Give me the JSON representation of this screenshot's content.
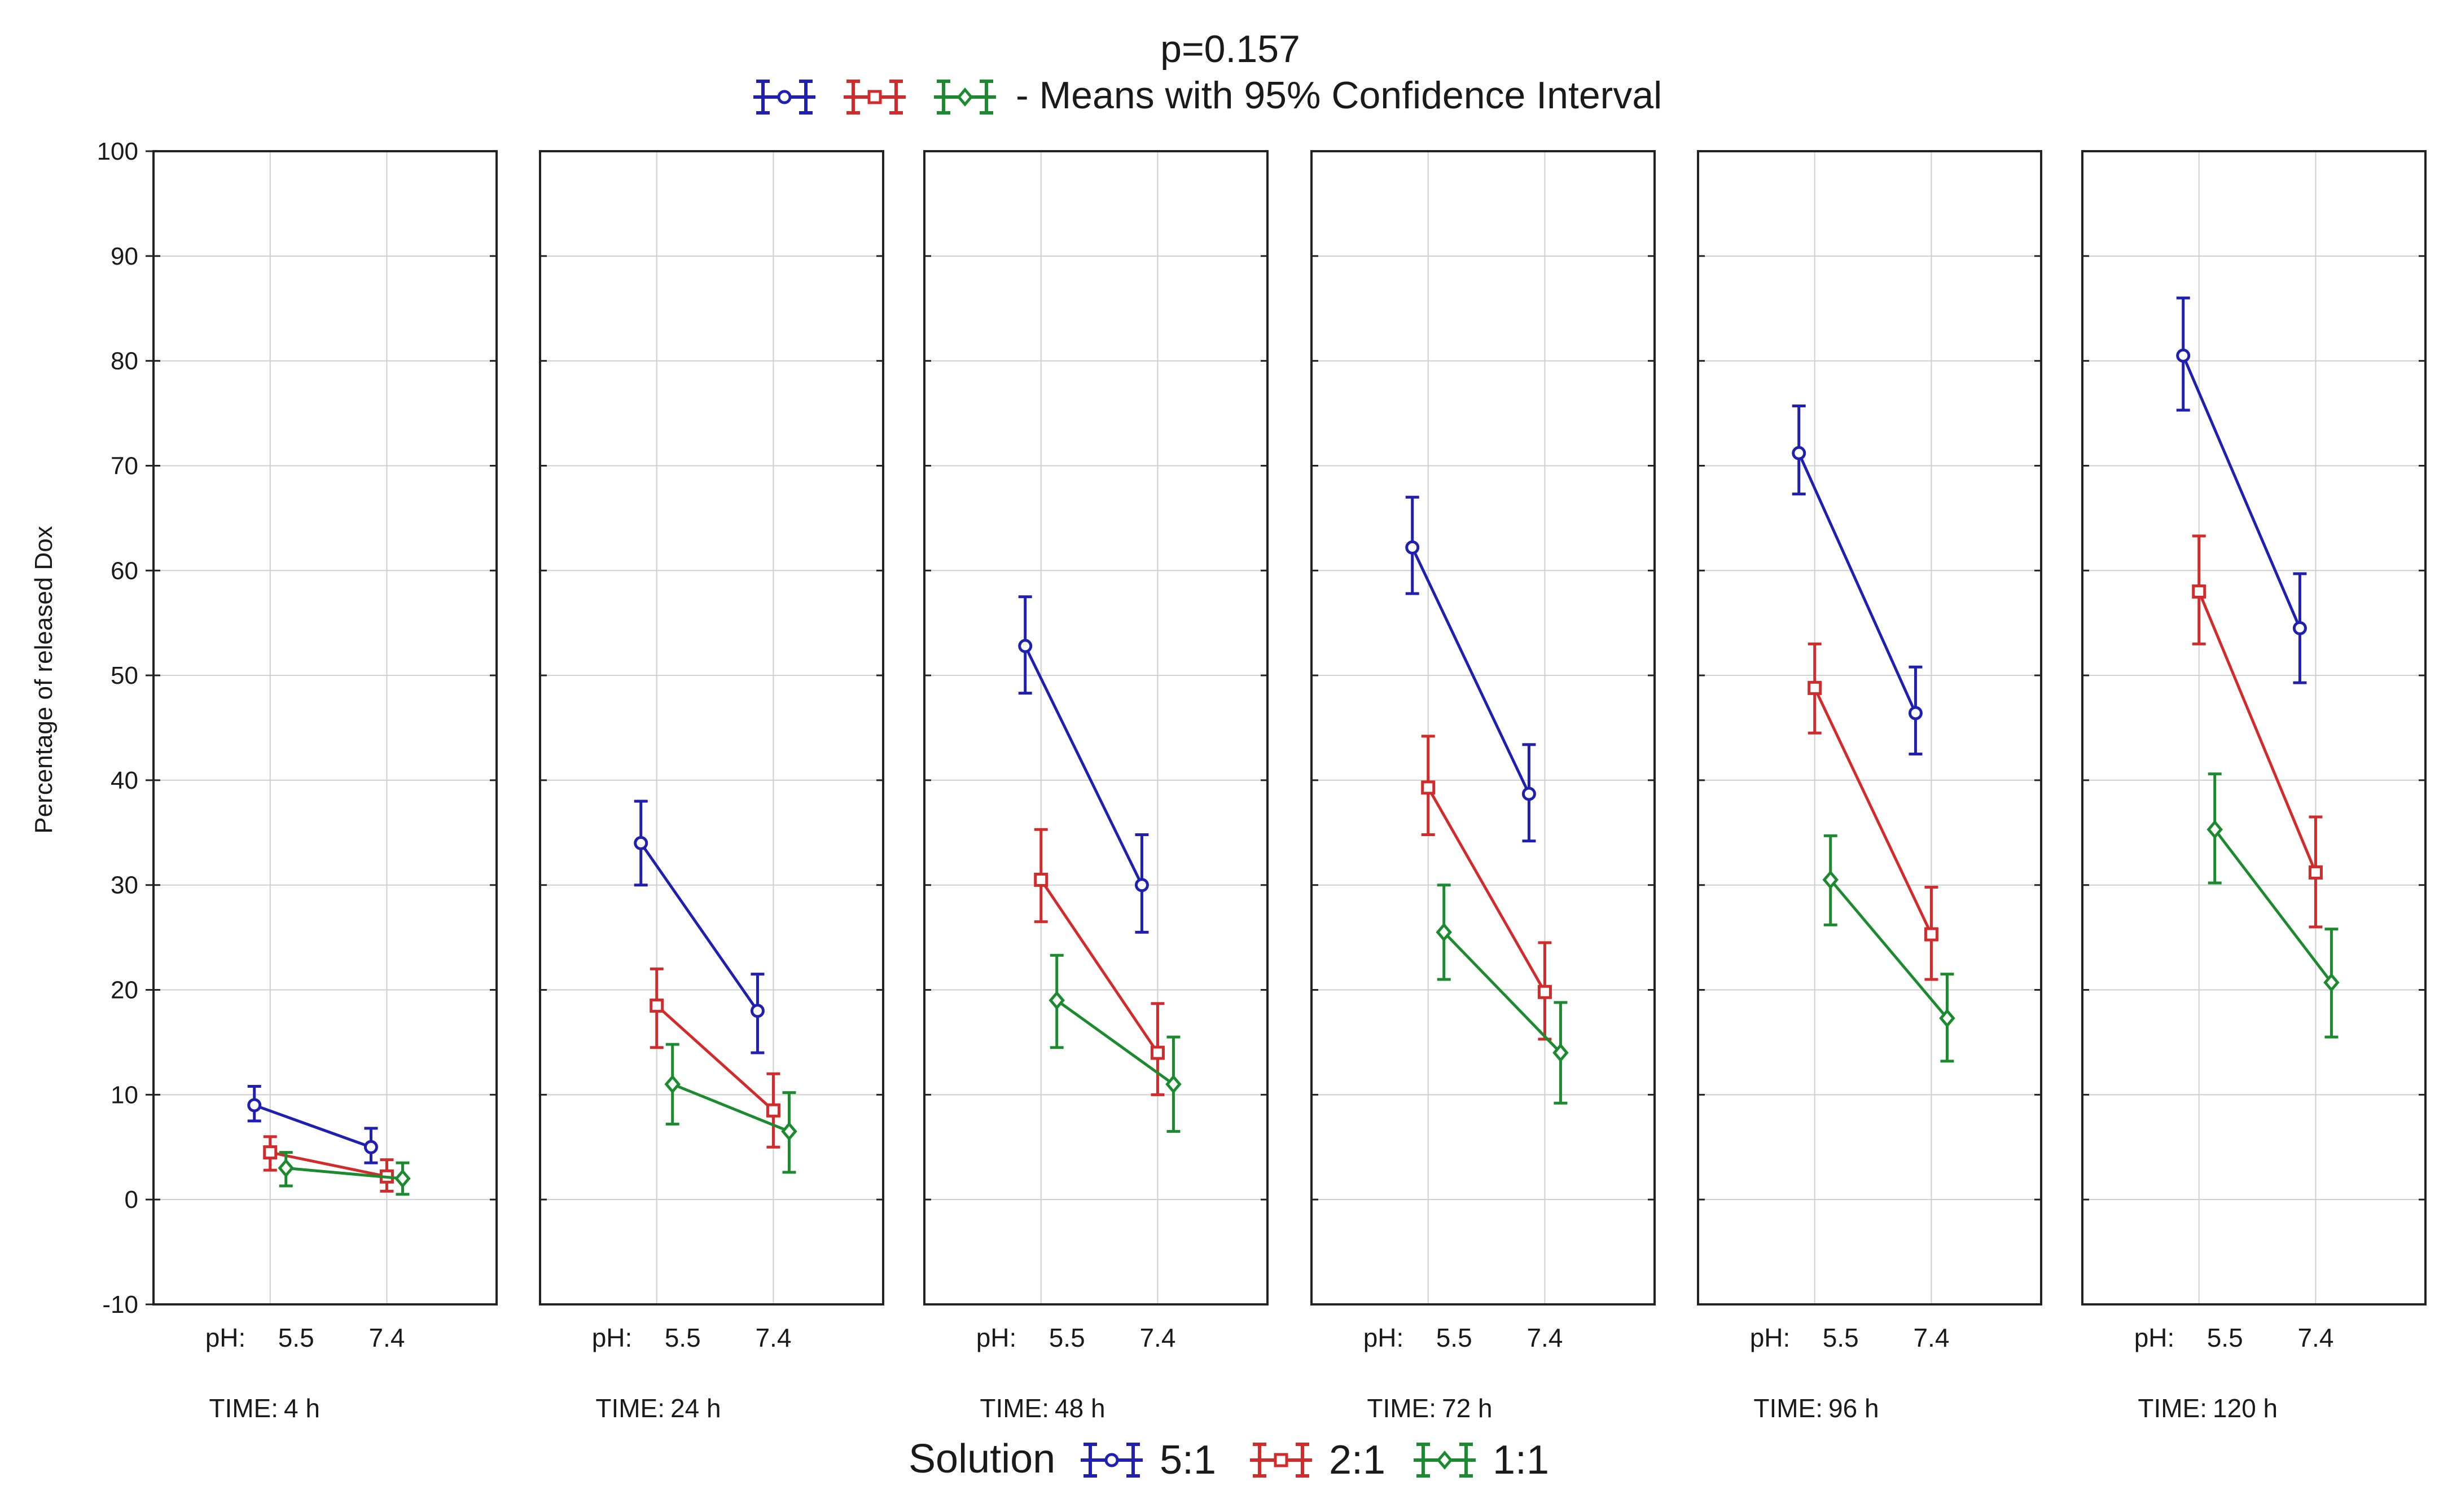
{
  "chart_data": {
    "type": "line",
    "title": "p=0.157",
    "subtitle": "- Means with 95% Confidence Interval",
    "ylabel": "Percentage of released Dox",
    "ylim": [
      -10,
      100
    ],
    "yticks": [
      -10,
      0,
      10,
      20,
      30,
      40,
      50,
      60,
      70,
      80,
      90,
      100
    ],
    "grid": true,
    "x_factor_label": "pH:",
    "x_categories": [
      "5.5",
      "7.4"
    ],
    "panel_factor_label": "TIME:",
    "legend_title": "Solution",
    "legend_position": "bottom",
    "panels": [
      {
        "time": "4 h",
        "series": [
          {
            "name": "5:1",
            "means": [
              9,
              5
            ],
            "ci_low": [
              7.5,
              3.5
            ],
            "ci_high": [
              10.8,
              6.8
            ]
          },
          {
            "name": "2:1",
            "means": [
              4.5,
              2.2
            ],
            "ci_low": [
              2.8,
              0.8
            ],
            "ci_high": [
              6,
              3.8
            ]
          },
          {
            "name": "1:1",
            "means": [
              3,
              2
            ],
            "ci_low": [
              1.3,
              0.5
            ],
            "ci_high": [
              4.5,
              3.5
            ]
          }
        ]
      },
      {
        "time": "24 h",
        "series": [
          {
            "name": "5:1",
            "means": [
              34,
              18
            ],
            "ci_low": [
              30,
              14
            ],
            "ci_high": [
              38,
              21.5
            ]
          },
          {
            "name": "2:1",
            "means": [
              18.5,
              8.5
            ],
            "ci_low": [
              14.5,
              5
            ],
            "ci_high": [
              22,
              12
            ]
          },
          {
            "name": "1:1",
            "means": [
              11,
              6.5
            ],
            "ci_low": [
              7.2,
              2.6
            ],
            "ci_high": [
              14.8,
              10.2
            ]
          }
        ]
      },
      {
        "time": "48 h",
        "series": [
          {
            "name": "5:1",
            "means": [
              52.8,
              30
            ],
            "ci_low": [
              48.3,
              25.5
            ],
            "ci_high": [
              57.5,
              34.8
            ]
          },
          {
            "name": "2:1",
            "means": [
              30.5,
              14
            ],
            "ci_low": [
              26.5,
              10
            ],
            "ci_high": [
              35.3,
              18.7
            ]
          },
          {
            "name": "1:1",
            "means": [
              19,
              11
            ],
            "ci_low": [
              14.5,
              6.5
            ],
            "ci_high": [
              23.3,
              15.5
            ]
          }
        ]
      },
      {
        "time": "72 h",
        "series": [
          {
            "name": "5:1",
            "means": [
              62.2,
              38.7
            ],
            "ci_low": [
              57.8,
              34.2
            ],
            "ci_high": [
              67,
              43.4
            ]
          },
          {
            "name": "2:1",
            "means": [
              39.3,
              19.8
            ],
            "ci_low": [
              34.8,
              15.3
            ],
            "ci_high": [
              44.2,
              24.5
            ]
          },
          {
            "name": "1:1",
            "means": [
              25.5,
              14
            ],
            "ci_low": [
              21,
              9.2
            ],
            "ci_high": [
              30,
              18.8
            ]
          }
        ]
      },
      {
        "time": "96 h",
        "series": [
          {
            "name": "5:1",
            "means": [
              71.2,
              46.4
            ],
            "ci_low": [
              67.3,
              42.5
            ],
            "ci_high": [
              75.7,
              50.8
            ]
          },
          {
            "name": "2:1",
            "means": [
              48.8,
              25.3
            ],
            "ci_low": [
              44.5,
              21
            ],
            "ci_high": [
              53,
              29.8
            ]
          },
          {
            "name": "1:1",
            "means": [
              30.5,
              17.3
            ],
            "ci_low": [
              26.2,
              13.2
            ],
            "ci_high": [
              34.7,
              21.5
            ]
          }
        ]
      },
      {
        "time": "120 h",
        "series": [
          {
            "name": "5:1",
            "means": [
              80.5,
              54.5
            ],
            "ci_low": [
              75.3,
              49.3
            ],
            "ci_high": [
              86,
              59.7
            ]
          },
          {
            "name": "2:1",
            "means": [
              58,
              31.2
            ],
            "ci_low": [
              53,
              26
            ],
            "ci_high": [
              63.3,
              36.5
            ]
          },
          {
            "name": "1:1",
            "means": [
              35.3,
              20.7
            ],
            "ci_low": [
              30.2,
              15.5
            ],
            "ci_high": [
              40.6,
              25.8
            ]
          }
        ]
      }
    ],
    "series_styles": [
      {
        "name": "5:1",
        "color": "#1f1fb0",
        "marker": "circle"
      },
      {
        "name": "2:1",
        "color": "#d22b2b",
        "marker": "square"
      },
      {
        "name": "1:1",
        "color": "#1c8a2e",
        "marker": "diamond"
      }
    ]
  }
}
